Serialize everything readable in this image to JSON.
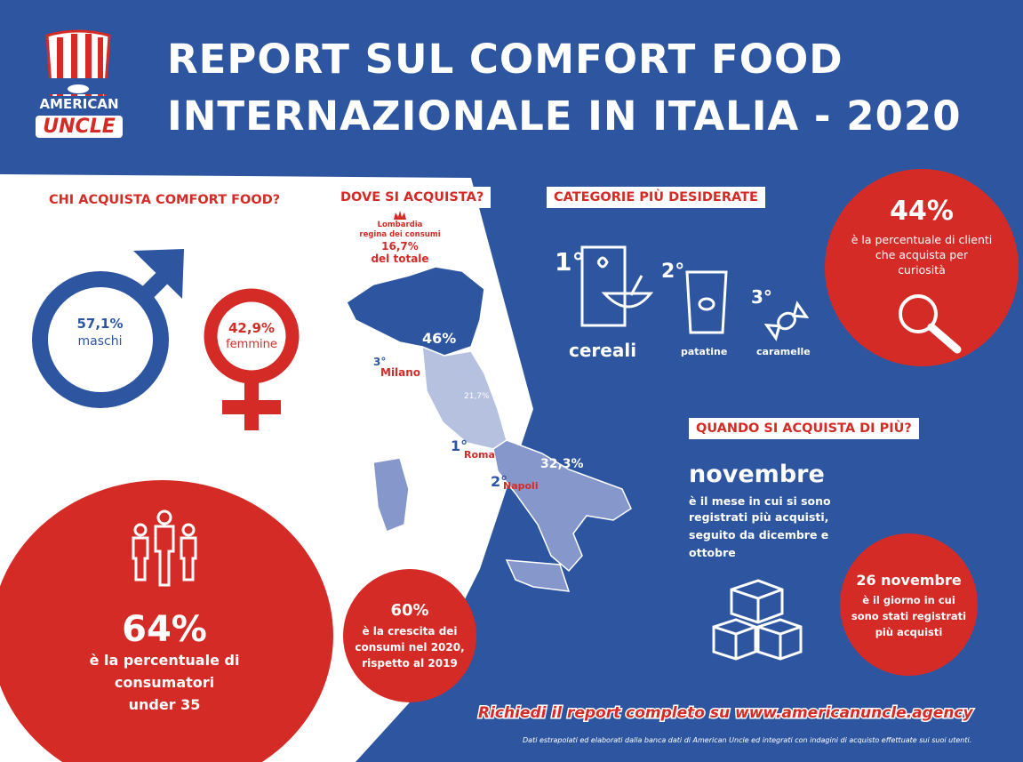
{
  "header": {
    "logo_top": "AMERICAN",
    "logo_bottom": "UNCLE",
    "title_line1": "REPORT SUL COMFORT FOOD",
    "title_line2": "INTERNAZIONALE IN ITALIA - 2020"
  },
  "gender": {
    "heading": "CHI ACQUISTA COMFORT FOOD?",
    "male_pct": "57,1%",
    "male_label": "maschi",
    "female_pct": "42,9%",
    "female_label": "femmine"
  },
  "under35": {
    "pct": "64%",
    "line1": "è la percentuale di",
    "line2": "consumatori",
    "line3": "under 35"
  },
  "growth": {
    "pct": "60%",
    "line1": "è la crescita dei",
    "line2": "consumi nel 2020,",
    "line3": "rispetto al 2019"
  },
  "map": {
    "heading": "DOVE SI ACQUISTA?",
    "lombardia_line1": "Lombardia",
    "lombardia_line2": "regina dei consumi",
    "lombardia_pct": "16,7%",
    "lombardia_total": "del totale",
    "north_pct": "46%",
    "center_pct": "21,7%",
    "south_pct": "32,3%",
    "rank3": "3°",
    "city3": "Milano",
    "rank1": "1°",
    "city1": "Roma",
    "rank2": "2°",
    "city2": "Napoli"
  },
  "categories": {
    "heading": "CATEGORIE PIÙ DESIDERATE",
    "first_rank": "1°",
    "first": "cereali",
    "second_rank": "2°",
    "second": "patatine",
    "third_rank": "3°",
    "third": "caramelle"
  },
  "curiosity": {
    "pct": "44%",
    "line1": "è la percentuale di clienti",
    "line2": "che acquista per",
    "line3": "curiosità"
  },
  "when": {
    "heading": "QUANDO SI ACQUISTA DI PIÙ?",
    "month": "novembre",
    "line1": "è il mese in cui si sono",
    "line2": "registrati più acquisti,",
    "line3": "seguito da dicembre e",
    "line4": "ottobre"
  },
  "day": {
    "title": "26 novembre",
    "line1": "è il giorno in cui",
    "line2": "sono stati registrati",
    "line3": "più acquisti"
  },
  "footer": {
    "cta": "Richiedi il report completo su www.americanuncle.agency",
    "note": "Dati estrapolati ed elaborati dalla banca dati di American Uncle ed integrati con indagini di acquisto effettuate sui suoi utenti."
  },
  "colors": {
    "blue": "#2e56a0",
    "red": "#d52b27",
    "light_blue": "#b6c1e0",
    "mid_blue": "#8697cc"
  }
}
